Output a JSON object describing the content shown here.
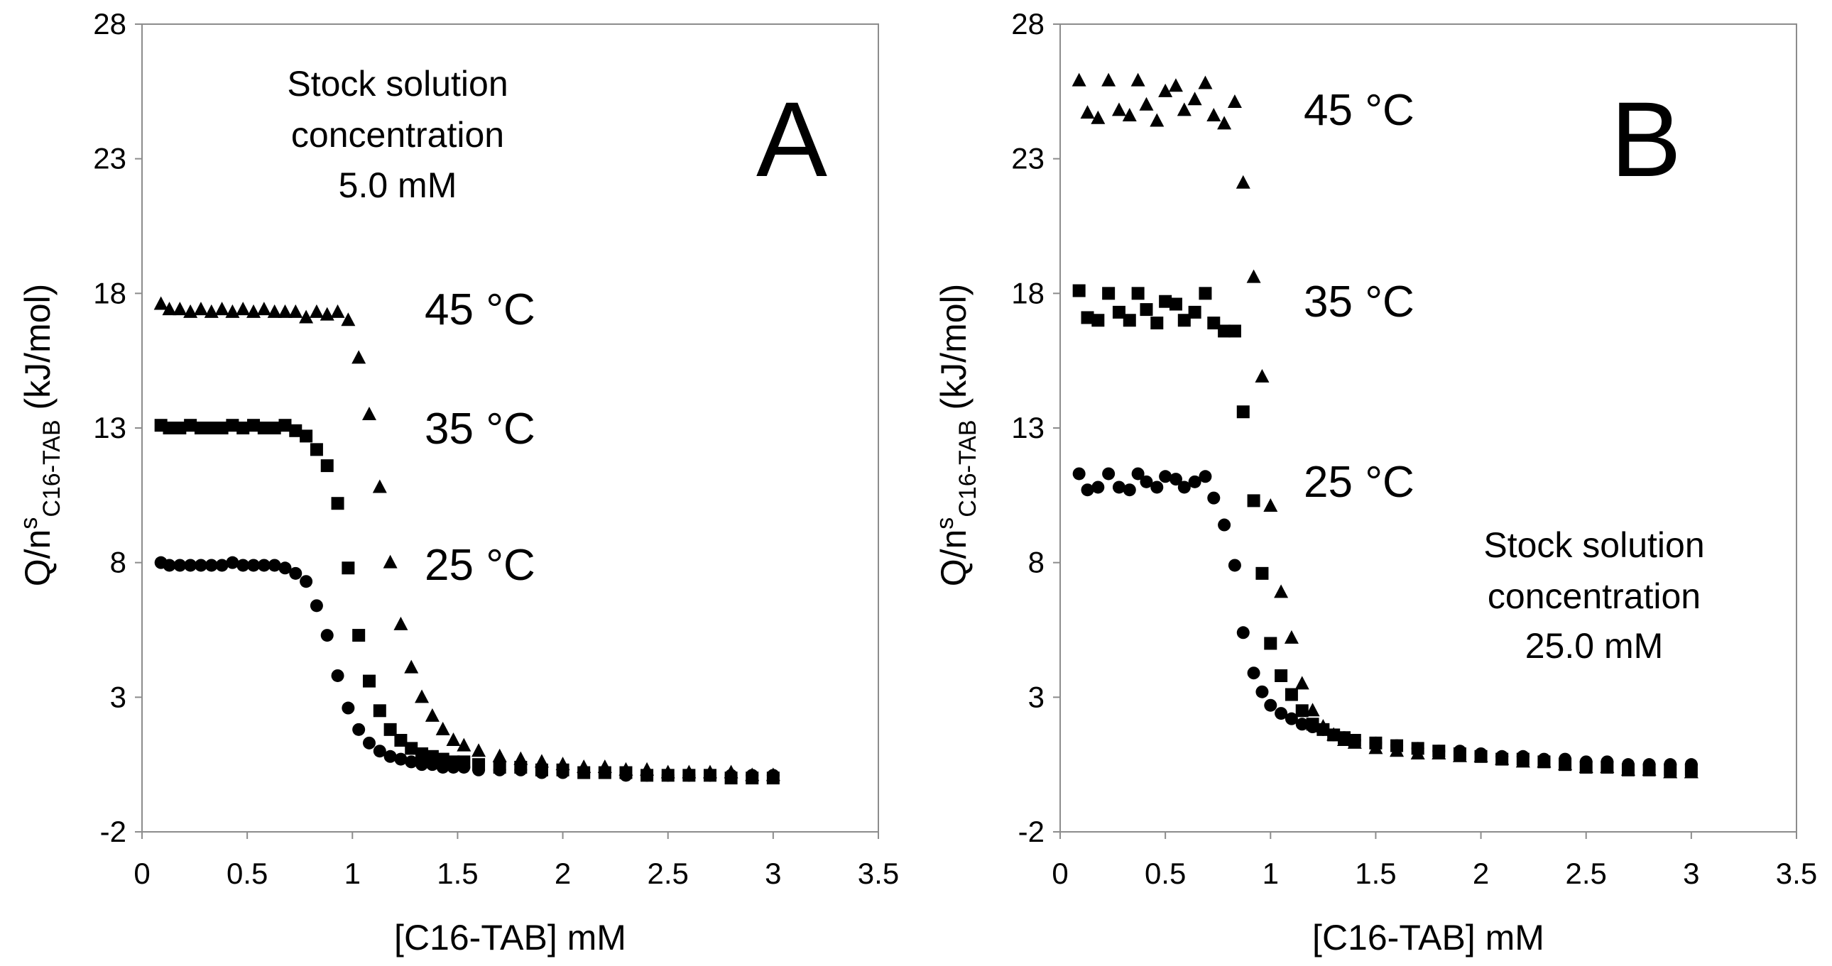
{
  "chart_data": [
    {
      "type": "scatter",
      "panel_label": "A",
      "xlabel": "[C16-TAB] mM",
      "ylabel": {
        "main": "Q/n",
        "sup": "s",
        "sub": "C16-TAB",
        "unit": "(kJ/mol)"
      },
      "xlim": [
        0,
        3.5
      ],
      "ylim": [
        -2,
        28
      ],
      "xticks": [
        0,
        0.5,
        1,
        1.5,
        2,
        2.5,
        3,
        3.5
      ],
      "xtick_labels": [
        "0",
        "0.5",
        "1",
        "1.5",
        "2",
        "2.5",
        "3",
        "3.5"
      ],
      "yticks": [
        -2,
        3,
        8,
        13,
        18,
        23,
        28
      ],
      "ytick_labels": [
        "-2",
        "3",
        "8",
        "13",
        "18",
        "23",
        "28"
      ],
      "grid": false,
      "annotation": [
        "Stock solution",
        "concentration",
        "5.0 mM"
      ],
      "series": [
        {
          "name": "45 °C",
          "marker": "triangle",
          "x": [
            0.09,
            0.13,
            0.18,
            0.23,
            0.28,
            0.33,
            0.38,
            0.43,
            0.48,
            0.53,
            0.58,
            0.63,
            0.68,
            0.73,
            0.78,
            0.83,
            0.88,
            0.93,
            0.98,
            1.03,
            1.08,
            1.13,
            1.18,
            1.23,
            1.28,
            1.33,
            1.38,
            1.43,
            1.48,
            1.53,
            1.6,
            1.7,
            1.8,
            1.9,
            2.0,
            2.1,
            2.2,
            2.3,
            2.4,
            2.5,
            2.6,
            2.7,
            2.8,
            2.9,
            3.0
          ],
          "y": [
            17.6,
            17.4,
            17.4,
            17.3,
            17.4,
            17.3,
            17.4,
            17.3,
            17.4,
            17.3,
            17.4,
            17.3,
            17.3,
            17.3,
            17.1,
            17.3,
            17.2,
            17.3,
            17.0,
            15.6,
            13.5,
            10.8,
            8.0,
            5.7,
            4.1,
            3.0,
            2.3,
            1.8,
            1.4,
            1.2,
            1.0,
            0.8,
            0.7,
            0.6,
            0.5,
            0.4,
            0.4,
            0.3,
            0.3,
            0.2,
            0.2,
            0.2,
            0.2,
            0.1,
            0.1
          ]
        },
        {
          "name": "35 °C",
          "marker": "square",
          "x": [
            0.09,
            0.13,
            0.18,
            0.23,
            0.28,
            0.33,
            0.38,
            0.43,
            0.48,
            0.53,
            0.58,
            0.63,
            0.68,
            0.73,
            0.78,
            0.83,
            0.88,
            0.93,
            0.98,
            1.03,
            1.08,
            1.13,
            1.18,
            1.23,
            1.28,
            1.33,
            1.38,
            1.43,
            1.48,
            1.53,
            1.6,
            1.7,
            1.8,
            1.9,
            2.0,
            2.1,
            2.2,
            2.3,
            2.4,
            2.5,
            2.6,
            2.7,
            2.8,
            2.9,
            3.0
          ],
          "y": [
            13.1,
            13.0,
            13.0,
            13.1,
            13.0,
            13.0,
            13.0,
            13.1,
            13.0,
            13.1,
            13.0,
            13.0,
            13.1,
            12.9,
            12.7,
            12.2,
            11.6,
            10.2,
            7.8,
            5.3,
            3.6,
            2.5,
            1.8,
            1.4,
            1.1,
            0.9,
            0.8,
            0.7,
            0.6,
            0.6,
            0.5,
            0.4,
            0.4,
            0.3,
            0.3,
            0.2,
            0.2,
            0.2,
            0.1,
            0.1,
            0.1,
            0.1,
            0.0,
            0.0,
            0.0
          ]
        },
        {
          "name": "25 °C",
          "marker": "circle",
          "x": [
            0.09,
            0.13,
            0.18,
            0.23,
            0.28,
            0.33,
            0.38,
            0.43,
            0.48,
            0.53,
            0.58,
            0.63,
            0.68,
            0.73,
            0.78,
            0.83,
            0.88,
            0.93,
            0.98,
            1.03,
            1.08,
            1.13,
            1.18,
            1.23,
            1.28,
            1.33,
            1.38,
            1.43,
            1.48,
            1.53,
            1.6,
            1.7,
            1.8,
            1.9,
            2.0,
            2.1,
            2.2,
            2.3,
            2.4,
            2.5,
            2.6,
            2.7,
            2.8,
            2.9,
            3.0
          ],
          "y": [
            8.0,
            7.9,
            7.9,
            7.9,
            7.9,
            7.9,
            7.9,
            8.0,
            7.9,
            7.9,
            7.9,
            7.9,
            7.8,
            7.6,
            7.3,
            6.4,
            5.3,
            3.8,
            2.6,
            1.8,
            1.3,
            1.0,
            0.8,
            0.7,
            0.6,
            0.5,
            0.5,
            0.4,
            0.4,
            0.4,
            0.3,
            0.3,
            0.3,
            0.2,
            0.2,
            0.2,
            0.2,
            0.1,
            0.1,
            0.1,
            0.1,
            0.1,
            0.1,
            0.1,
            0.1
          ]
        }
      ]
    },
    {
      "type": "scatter",
      "panel_label": "B",
      "xlabel": "[C16-TAB] mM",
      "ylabel": {
        "main": "Q/n",
        "sup": "s",
        "sub": "C16-TAB",
        "unit": "(kJ/mol)"
      },
      "xlim": [
        0,
        3.5
      ],
      "ylim": [
        -2,
        28
      ],
      "xticks": [
        0,
        0.5,
        1,
        1.5,
        2,
        2.5,
        3,
        3.5
      ],
      "xtick_labels": [
        "0",
        "0.5",
        "1",
        "1.5",
        "2",
        "2.5",
        "3",
        "3.5"
      ],
      "yticks": [
        -2,
        3,
        8,
        13,
        18,
        23,
        28
      ],
      "ytick_labels": [
        "-2",
        "3",
        "8",
        "13",
        "18",
        "23",
        "28"
      ],
      "grid": false,
      "annotation": [
        "Stock solution",
        "concentration",
        "25.0 mM"
      ],
      "series": [
        {
          "name": "45 °C",
          "marker": "triangle",
          "x": [
            0.09,
            0.13,
            0.18,
            0.23,
            0.28,
            0.33,
            0.37,
            0.41,
            0.46,
            0.5,
            0.55,
            0.59,
            0.64,
            0.69,
            0.73,
            0.78,
            0.83,
            0.87,
            0.92,
            0.96,
            1.0,
            1.05,
            1.1,
            1.15,
            1.2,
            1.25,
            1.3,
            1.35,
            1.4,
            1.5,
            1.6,
            1.7,
            1.8,
            1.9,
            2.0,
            2.1,
            2.2,
            2.3,
            2.4,
            2.5,
            2.6,
            2.7,
            2.8,
            2.9,
            3.0
          ],
          "y": [
            25.9,
            24.7,
            24.5,
            25.9,
            24.8,
            24.6,
            25.9,
            25.0,
            24.4,
            25.5,
            25.7,
            24.8,
            25.2,
            25.8,
            24.6,
            24.3,
            25.1,
            22.1,
            18.6,
            14.9,
            10.1,
            6.9,
            5.2,
            3.5,
            2.5,
            1.9,
            1.6,
            1.4,
            1.3,
            1.1,
            1.0,
            0.9,
            0.9,
            0.8,
            0.8,
            0.7,
            0.6,
            0.6,
            0.5,
            0.4,
            0.4,
            0.3,
            0.3,
            0.2,
            0.2
          ]
        },
        {
          "name": "35 °C",
          "marker": "square",
          "x": [
            0.09,
            0.13,
            0.18,
            0.23,
            0.28,
            0.33,
            0.37,
            0.41,
            0.46,
            0.5,
            0.55,
            0.59,
            0.64,
            0.69,
            0.73,
            0.78,
            0.83,
            0.87,
            0.92,
            0.96,
            1.0,
            1.05,
            1.1,
            1.15,
            1.2,
            1.25,
            1.3,
            1.35,
            1.4,
            1.5,
            1.6,
            1.7,
            1.8,
            1.9,
            2.0,
            2.1,
            2.2,
            2.3,
            2.4,
            2.5,
            2.6,
            2.7,
            2.8,
            2.9,
            3.0
          ],
          "y": [
            18.1,
            17.1,
            17.0,
            18.0,
            17.3,
            17.0,
            18.0,
            17.4,
            16.9,
            17.7,
            17.6,
            17.0,
            17.3,
            18.0,
            16.9,
            16.6,
            16.6,
            13.6,
            10.3,
            7.6,
            5.0,
            3.8,
            3.1,
            2.5,
            2.0,
            1.8,
            1.6,
            1.5,
            1.4,
            1.3,
            1.2,
            1.1,
            1.0,
            0.9,
            0.8,
            0.7,
            0.7,
            0.6,
            0.5,
            0.4,
            0.4,
            0.3,
            0.3,
            0.3,
            0.3
          ]
        },
        {
          "name": "25 °C",
          "marker": "circle",
          "x": [
            0.09,
            0.13,
            0.18,
            0.23,
            0.28,
            0.33,
            0.37,
            0.41,
            0.46,
            0.5,
            0.55,
            0.59,
            0.64,
            0.69,
            0.73,
            0.78,
            0.83,
            0.87,
            0.92,
            0.96,
            1.0,
            1.05,
            1.1,
            1.15,
            1.2,
            1.25,
            1.3,
            1.35,
            1.4,
            1.5,
            1.6,
            1.7,
            1.8,
            1.9,
            2.0,
            2.1,
            2.2,
            2.3,
            2.4,
            2.5,
            2.6,
            2.7,
            2.8,
            2.9,
            3.0
          ],
          "y": [
            11.3,
            10.7,
            10.8,
            11.3,
            10.8,
            10.7,
            11.3,
            11.0,
            10.8,
            11.2,
            11.1,
            10.8,
            11.0,
            11.2,
            10.4,
            9.4,
            7.9,
            5.4,
            3.9,
            3.2,
            2.7,
            2.4,
            2.2,
            2.0,
            1.9,
            1.8,
            1.6,
            1.5,
            1.4,
            1.3,
            1.2,
            1.1,
            1.0,
            1.0,
            0.9,
            0.8,
            0.8,
            0.7,
            0.7,
            0.6,
            0.6,
            0.5,
            0.5,
            0.5,
            0.5
          ]
        }
      ]
    }
  ]
}
